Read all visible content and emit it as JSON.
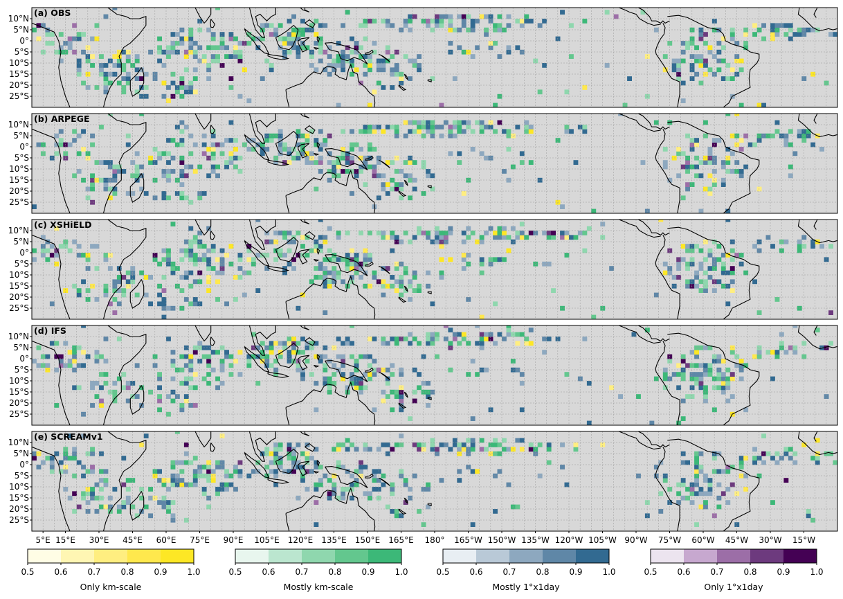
{
  "panels": [
    {
      "label": "(a) OBS"
    },
    {
      "label": "(b) ARPEGE"
    },
    {
      "label": "(c) XSHiELD"
    },
    {
      "label": "(d) IFS"
    },
    {
      "label": "(e) SCREAMv1"
    }
  ],
  "lat_ticks": [
    "10°N",
    "5°N",
    "0°",
    "5°S",
    "10°S",
    "15°S",
    "20°S",
    "25°S"
  ],
  "lon_ticks": [
    "5°E",
    "15°E",
    "30°E",
    "45°E",
    "60°E",
    "75°E",
    "90°E",
    "105°E",
    "120°E",
    "135°E",
    "150°E",
    "165°E",
    "180°",
    "165°W",
    "150°W",
    "135°W",
    "120°W",
    "105°W",
    "90°W",
    "75°W",
    "60°W",
    "45°W",
    "30°W",
    "15°W"
  ],
  "colorbars": [
    {
      "title": "Only km-scale",
      "ticks": [
        "0.5",
        "0.6",
        "0.7",
        "0.8",
        "0.9",
        "1.0"
      ],
      "colors": [
        "#fffde5",
        "#fff6b3",
        "#ffee80",
        "#ffe84d",
        "#fde725"
      ]
    },
    {
      "title": "Mostly km-scale",
      "ticks": [
        "0.5",
        "0.6",
        "0.7",
        "0.8",
        "0.9",
        "1.0"
      ],
      "colors": [
        "#e8f6ee",
        "#bbe6cf",
        "#8fd7ae",
        "#63c78e",
        "#3cb878"
      ]
    },
    {
      "title": "Mostly 1°x1day",
      "ticks": [
        "0.5",
        "0.6",
        "0.7",
        "0.8",
        "0.9",
        "1.0"
      ],
      "colors": [
        "#e8eef3",
        "#b9c9d7",
        "#8da8bf",
        "#5f87a7",
        "#326a91"
      ]
    },
    {
      "title": "Only 1°x1day",
      "ticks": [
        "0.5",
        "0.6",
        "0.7",
        "0.8",
        "0.9",
        "1.0"
      ],
      "colors": [
        "#ece4ef",
        "#c7a8cf",
        "#9c6ea7",
        "#6d3a7e",
        "#440154"
      ]
    }
  ],
  "map": {
    "lon_range": [
      0,
      360
    ],
    "lat_range": [
      -30,
      15
    ],
    "background_color": "#d8d8d8",
    "gridlines": true
  }
}
